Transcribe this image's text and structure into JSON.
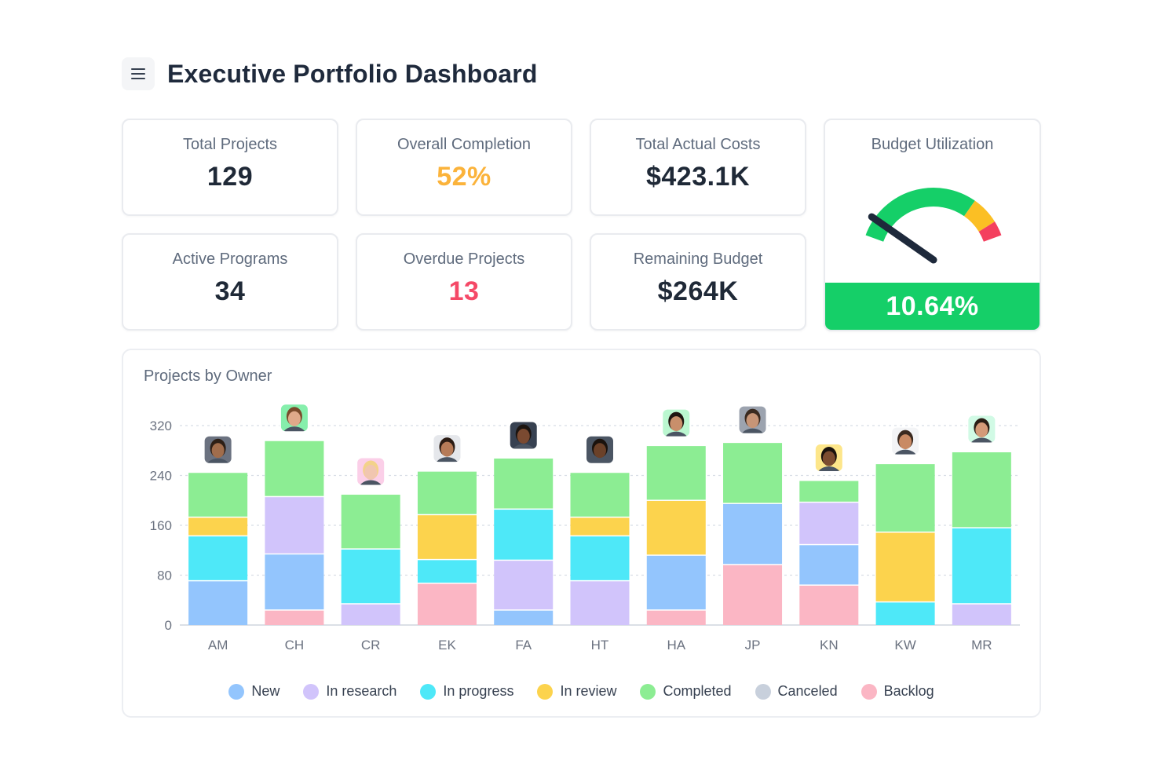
{
  "header": {
    "title": "Executive Portfolio Dashboard",
    "menu_icon": "hamburger-menu-icon"
  },
  "kpis": {
    "total_projects": {
      "label": "Total Projects",
      "value": "129"
    },
    "overall_completion": {
      "label": "Overall Completion",
      "value": "52%",
      "color": "#fbb33b"
    },
    "total_actual_costs": {
      "label": "Total Actual Costs",
      "value": "$423.1K"
    },
    "active_programs": {
      "label": "Active Programs",
      "value": "34"
    },
    "overdue_projects": {
      "label": "Overdue Projects",
      "value": "13",
      "color": "#f54967"
    },
    "remaining_budget": {
      "label": "Remaining Budget",
      "value": "$264K"
    }
  },
  "budget": {
    "label": "Budget Utilization",
    "value": "10.64%",
    "fraction": 0.1064,
    "gauge_colors": {
      "good": "#15cf68",
      "warning": "#fbbf24",
      "danger": "#f43f5e",
      "bar": "#15cf68"
    }
  },
  "chart": {
    "title": "Projects by Owner"
  },
  "chart_data": {
    "type": "bar",
    "stacked": true,
    "categories": [
      "AM",
      "CH",
      "CR",
      "EK",
      "FA",
      "HT",
      "HA",
      "JP",
      "KN",
      "KW",
      "MR"
    ],
    "ylim": [
      0,
      320
    ],
    "yticks": [
      0,
      80,
      160,
      240,
      320
    ],
    "grid": true,
    "legend_position": "bottom",
    "series": [
      {
        "name": "Backlog",
        "color": "#fbb6c4",
        "values": [
          0,
          25,
          0,
          68,
          0,
          0,
          25,
          98,
          65,
          0,
          0
        ]
      },
      {
        "name": "Canceled",
        "color": "#c8d0dc",
        "values": [
          0,
          0,
          0,
          0,
          0,
          0,
          0,
          0,
          0,
          0,
          0
        ]
      },
      {
        "name": "New",
        "color": "#93c5fd",
        "values": [
          72,
          90,
          0,
          0,
          25,
          0,
          88,
          98,
          65,
          0,
          0
        ]
      },
      {
        "name": "In research",
        "color": "#d1c4fb",
        "values": [
          0,
          92,
          35,
          0,
          80,
          72,
          0,
          0,
          68,
          0,
          35
        ]
      },
      {
        "name": "In progress",
        "color": "#4ee8f8",
        "values": [
          72,
          0,
          88,
          38,
          82,
          72,
          0,
          0,
          0,
          38,
          122
        ]
      },
      {
        "name": "In review",
        "color": "#fcd34d",
        "values": [
          30,
          0,
          0,
          72,
          0,
          30,
          88,
          0,
          0,
          112,
          0
        ]
      },
      {
        "name": "Completed",
        "color": "#8ced93",
        "values": [
          72,
          90,
          88,
          70,
          82,
          72,
          88,
          98,
          35,
          110,
          122
        ]
      }
    ],
    "legend": [
      {
        "name": "New",
        "color": "#93c5fd"
      },
      {
        "name": "In research",
        "color": "#d1c4fb"
      },
      {
        "name": "In progress",
        "color": "#4ee8f8"
      },
      {
        "name": "In review",
        "color": "#fcd34d"
      },
      {
        "name": "Completed",
        "color": "#8ced93"
      },
      {
        "name": "Canceled",
        "color": "#c8d0dc"
      },
      {
        "name": "Backlog",
        "color": "#fbb6c4"
      }
    ],
    "avatars": [
      {
        "owner": "AM",
        "bg": "#6b7280",
        "skin": "#a16d4c",
        "hair": "#2d1f16"
      },
      {
        "owner": "CH",
        "bg": "#86efac",
        "skin": "#e0a98a",
        "hair": "#7a4a2b"
      },
      {
        "owner": "CR",
        "bg": "#fbcfe8",
        "skin": "#f1c6b0",
        "hair": "#f3d28a"
      },
      {
        "owner": "EK",
        "bg": "#e5e7eb",
        "skin": "#b67b58",
        "hair": "#2b1c14"
      },
      {
        "owner": "FA",
        "bg": "#374151",
        "skin": "#7a4a31",
        "hair": "#1c1410"
      },
      {
        "owner": "HT",
        "bg": "#4b5563",
        "skin": "#6b4129",
        "hair": "#1a120d"
      },
      {
        "owner": "HA",
        "bg": "#bbf7d0",
        "skin": "#c98f6b",
        "hair": "#1f1511"
      },
      {
        "owner": "JP",
        "bg": "#9ca3af",
        "skin": "#c79577",
        "hair": "#3a2a20"
      },
      {
        "owner": "KN",
        "bg": "#fde68a",
        "skin": "#7c4c30",
        "hair": "#1a120d"
      },
      {
        "owner": "KW",
        "bg": "#f3f4f6",
        "skin": "#c98a64",
        "hair": "#3b2a20"
      },
      {
        "owner": "MR",
        "bg": "#d1fae5",
        "skin": "#d49a78",
        "hair": "#2a1d15"
      }
    ]
  }
}
